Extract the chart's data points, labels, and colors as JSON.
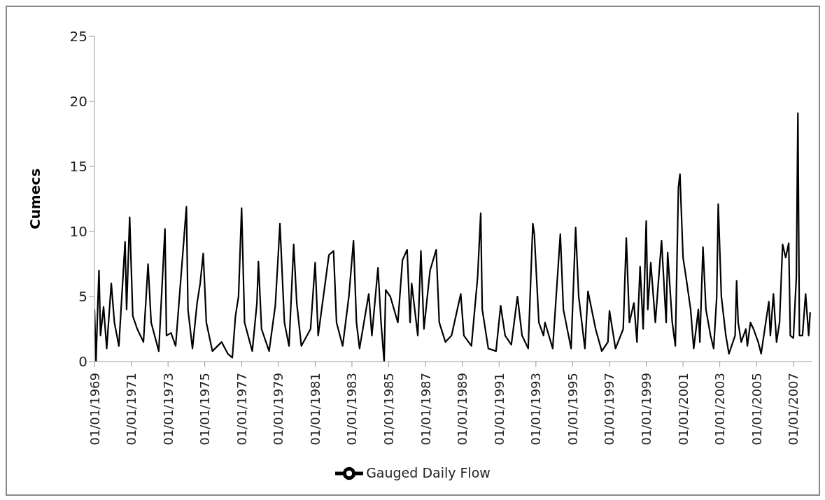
{
  "chart_data": {
    "type": "line",
    "ylabel": "Cumecs",
    "legend": "bottom",
    "grid": false,
    "xlim": [
      "1969-01-01",
      "2007-12-31"
    ],
    "xticks": [
      {
        "value": "1969-01-01",
        "label": "01/01/1969"
      },
      {
        "value": "1971-01-01",
        "label": "01/01/1971"
      },
      {
        "value": "1973-01-01",
        "label": "01/01/1973"
      },
      {
        "value": "1975-01-01",
        "label": "01/01/1975"
      },
      {
        "value": "1977-01-01",
        "label": "01/01/1977"
      },
      {
        "value": "1979-01-01",
        "label": "01/01/1979"
      },
      {
        "value": "1981-01-01",
        "label": "01/01/1981"
      },
      {
        "value": "1983-01-01",
        "label": "01/01/1983"
      },
      {
        "value": "1985-01-01",
        "label": "01/01/1985"
      },
      {
        "value": "1987-01-01",
        "label": "01/01/1987"
      },
      {
        "value": "1989-01-01",
        "label": "01/01/1989"
      },
      {
        "value": "1991-01-01",
        "label": "01/01/1991"
      },
      {
        "value": "1993-01-01",
        "label": "01/01/1993"
      },
      {
        "value": "1995-01-01",
        "label": "01/01/1995"
      },
      {
        "value": "1997-01-01",
        "label": "01/01/1997"
      },
      {
        "value": "1999-01-01",
        "label": "01/01/1999"
      },
      {
        "value": "2001-01-01",
        "label": "01/01/2001"
      },
      {
        "value": "2003-01-01",
        "label": "01/01/2003"
      },
      {
        "value": "2005-01-01",
        "label": "01/01/2005"
      },
      {
        "value": "2007-01-01",
        "label": "01/01/2007"
      }
    ],
    "ylim": [
      0,
      25
    ],
    "yticks": [
      0,
      5,
      10,
      15,
      20,
      25
    ],
    "x": [
      "1969-01",
      "1969-02",
      "1969-03",
      "1969-04",
      "1969-05",
      "1969-07",
      "1969-09",
      "1969-12",
      "1970-02",
      "1970-05",
      "1970-09",
      "1970-10",
      "1970-12",
      "1971-02",
      "1971-05",
      "1971-09",
      "1971-12",
      "1972-02",
      "1972-07",
      "1972-11",
      "1972-12",
      "1973-03",
      "1973-06",
      "1974-01",
      "1974-02",
      "1974-05",
      "1974-08",
      "1974-10",
      "1974-12",
      "1975-02",
      "1975-06",
      "1975-12",
      "1976-04",
      "1976-07",
      "1976-09",
      "1976-11",
      "1977-01",
      "1977-03",
      "1977-08",
      "1977-11",
      "1977-12",
      "1978-02",
      "1978-07",
      "1978-11",
      "1979-01",
      "1979-02",
      "1979-05",
      "1979-08",
      "1979-11",
      "1980-01",
      "1980-04",
      "1980-10",
      "1981-01",
      "1981-03",
      "1981-10",
      "1982-01",
      "1982-03",
      "1982-07",
      "1982-11",
      "1983-02",
      "1983-04",
      "1983-06",
      "1983-12",
      "1984-02",
      "1984-06",
      "1984-08",
      "1984-10",
      "1984-11",
      "1985-02",
      "1985-07",
      "1985-10",
      "1986-01",
      "1986-03",
      "1986-04",
      "1986-08",
      "1986-10",
      "1986-12",
      "1987-04",
      "1987-08",
      "1987-10",
      "1988-02",
      "1988-06",
      "1988-12",
      "1989-02",
      "1989-07",
      "1989-11",
      "1990-01",
      "1990-02",
      "1990-06",
      "1990-11",
      "1991-02",
      "1991-05",
      "1991-09",
      "1992-01",
      "1992-04",
      "1992-08",
      "1992-11",
      "1992-12",
      "1993-03",
      "1993-06",
      "1993-07",
      "1993-12",
      "1994-05",
      "1994-07",
      "1994-12",
      "1995-03",
      "1995-05",
      "1995-09",
      "1995-11",
      "1996-04",
      "1996-08",
      "1996-12",
      "1997-01",
      "1997-05",
      "1997-10",
      "1997-12",
      "1998-02",
      "1998-05",
      "1998-07",
      "1998-09",
      "1998-11",
      "1999-01",
      "1999-02",
      "1999-04",
      "1999-07",
      "1999-11",
      "2000-02",
      "2000-03",
      "2000-06",
      "2000-08",
      "2000-10",
      "2000-11",
      "2001-01",
      "2001-03",
      "2001-06",
      "2001-08",
      "2001-09",
      "2001-11",
      "2001-12",
      "2002-02",
      "2002-04",
      "2002-07",
      "2002-09",
      "2002-11",
      "2002-12",
      "2003-02",
      "2003-05",
      "2003-07",
      "2003-11",
      "2003-12",
      "2004-01",
      "2004-03",
      "2004-06",
      "2004-07",
      "2004-09",
      "2004-11",
      "2005-02",
      "2005-04",
      "2005-07",
      "2005-09",
      "2005-10",
      "2005-12",
      "2006-02",
      "2006-04",
      "2006-06",
      "2006-08",
      "2006-10",
      "2006-11",
      "2007-01",
      "2007-03",
      "2007-04",
      "2007-05",
      "2007-07",
      "2007-09",
      "2007-11",
      "2007-12"
    ],
    "series": [
      {
        "name": "Gauged Daily Flow",
        "color": "#000000",
        "values": [
          4.0,
          0,
          3.5,
          7.0,
          2,
          4.2,
          1.0,
          6.0,
          3,
          1.2,
          9.2,
          4,
          11.1,
          3.5,
          2.5,
          1.5,
          7.5,
          3,
          0.8,
          10.2,
          2,
          2.2,
          1.2,
          11.9,
          4,
          1.0,
          4.5,
          6,
          8.3,
          3,
          0.8,
          1.5,
          0.6,
          0.3,
          3.5,
          5,
          11.8,
          3,
          0.8,
          4.5,
          7.7,
          2.5,
          0.8,
          4.3,
          8.4,
          10.6,
          3,
          1.2,
          9.0,
          4.5,
          1.2,
          2.5,
          7.6,
          2,
          8.2,
          8.5,
          3,
          1.2,
          5,
          9.3,
          3,
          1.0,
          5.2,
          2,
          7.2,
          3,
          0,
          5.5,
          5,
          3,
          7.8,
          8.6,
          3,
          6,
          2,
          8.5,
          2.5,
          7,
          8.6,
          3,
          1.5,
          2,
          5.2,
          2,
          1.2,
          6.5,
          11.4,
          4,
          1.0,
          0.8,
          4.3,
          2,
          1.3,
          5,
          2,
          1.0,
          10.6,
          9.8,
          3,
          2.0,
          3,
          1.0,
          9.8,
          4.0,
          1.0,
          10.3,
          5,
          1.0,
          5.4,
          2.5,
          0.8,
          1.5,
          3.9,
          1.0,
          2.5,
          9.5,
          3,
          4.5,
          1.5,
          7.3,
          2.5,
          10.8,
          4,
          7.6,
          3,
          9.3,
          3,
          8.4,
          3,
          1.2,
          13.4,
          14.4,
          8,
          6.5,
          4,
          1.0,
          2,
          4,
          1.5,
          8.8,
          4,
          2,
          1.0,
          5,
          12.1,
          5,
          2,
          0.6,
          2,
          6.2,
          3,
          1.5,
          2.5,
          1.2,
          3,
          2.5,
          1.5,
          0.6,
          3,
          4.6,
          2,
          5.2,
          1.5,
          3,
          9.0,
          8,
          9.1,
          2,
          1.8,
          6.5,
          19.1,
          2,
          2,
          5.2,
          2,
          3.8
        ]
      }
    ]
  }
}
